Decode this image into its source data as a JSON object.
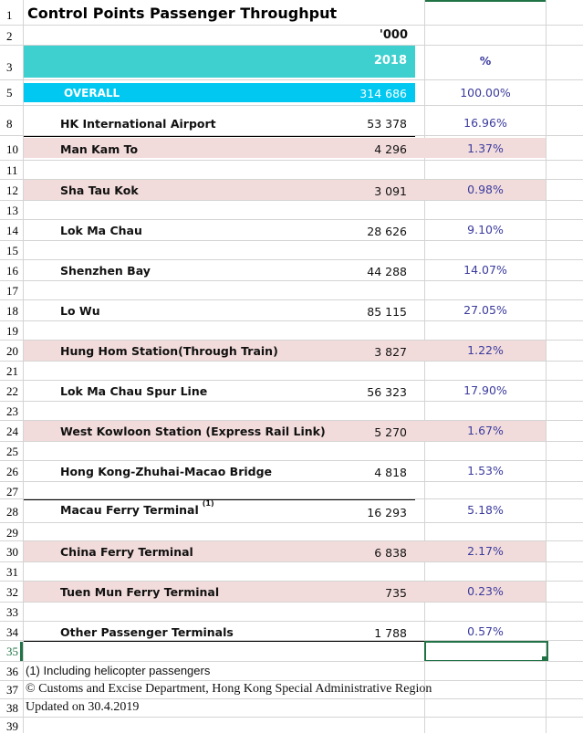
{
  "title": "Control Points Passenger Throughput",
  "unit": "'000",
  "year_header": "2018",
  "pct_header": "%",
  "overall": {
    "label": "OVERALL",
    "value": "314 686",
    "pct": "100.00%"
  },
  "rows": [
    {
      "rownum": "8",
      "label": "HK International Airport",
      "value": "53 378",
      "pct": "16.96%"
    },
    {
      "rownum": "10",
      "label": "Man Kam To",
      "value": "4 296",
      "pct": "1.37%"
    },
    {
      "rownum": "12",
      "label": "Sha Tau Kok",
      "value": "3 091",
      "pct": "0.98%"
    },
    {
      "rownum": "14",
      "label": "Lok Ma Chau",
      "value": "28 626",
      "pct": "9.10%"
    },
    {
      "rownum": "16",
      "label": "Shenzhen Bay",
      "value": "44 288",
      "pct": "14.07%"
    },
    {
      "rownum": "18",
      "label": "Lo Wu",
      "value": "85 115",
      "pct": "27.05%"
    },
    {
      "rownum": "20",
      "label": "Hung Hom Station(Through Train)",
      "value": "3 827",
      "pct": "1.22%"
    },
    {
      "rownum": "22",
      "label": "Lok Ma Chau Spur Line",
      "value": "56 323",
      "pct": "17.90%"
    },
    {
      "rownum": "24",
      "label": "West Kowloon Station (Express Rail Link)",
      "value": "5 270",
      "pct": "1.67%"
    },
    {
      "rownum": "26",
      "label": "Hong Kong-Zhuhai-Macao Bridge",
      "value": "4 818",
      "pct": "1.53%"
    },
    {
      "rownum": "28",
      "label": "Macau Ferry Terminal",
      "sup": "(1)",
      "value": "16 293",
      "pct": "5.18%"
    },
    {
      "rownum": "30",
      "label": "China Ferry Terminal",
      "value": "6 838",
      "pct": "2.17%"
    },
    {
      "rownum": "32",
      "label": "Tuen Mun Ferry Terminal",
      "value": "735",
      "pct": "0.23%"
    },
    {
      "rownum": "34",
      "label": "Other Passenger Terminals",
      "value": "1 788",
      "pct": "0.57%"
    }
  ],
  "notes": {
    "n36": "(1) Including helicopter passengers",
    "n37": "© Customs and Excise Department, Hong Kong Special Administrative Region",
    "n38": "Updated on 30.4.2019"
  },
  "rownums": {
    "r1": "1",
    "r2": "2",
    "r3": "3",
    "r5": "5",
    "r11": "11",
    "r13": "13",
    "r15": "15",
    "r17": "17",
    "r19": "19",
    "r21": "21",
    "r23": "23",
    "r25": "25",
    "r27": "27",
    "r29": "29",
    "r31": "31",
    "r33": "33",
    "r35": "35",
    "r36": "36",
    "r37": "37",
    "r38": "38",
    "r39": "39"
  },
  "colors": {
    "teal": "#3ecfcf",
    "cyan": "#00c8f0",
    "pink": "#f2dcdb",
    "pct_text": "#3b3b9e",
    "selection": "#217346"
  }
}
